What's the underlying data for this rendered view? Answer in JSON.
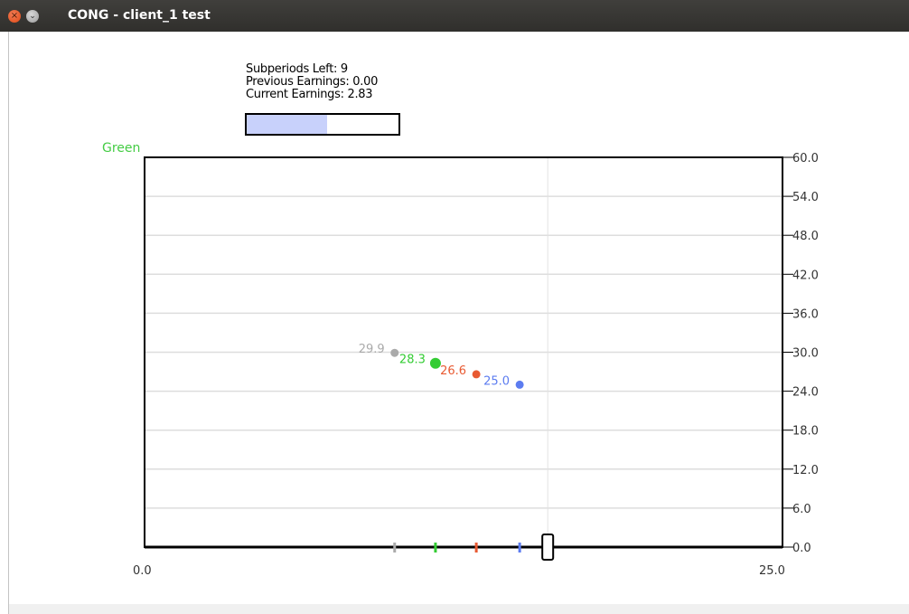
{
  "window": {
    "title": "CONG - client_1 test",
    "close_glyph": "×",
    "menu_glyph": "⌄"
  },
  "info": {
    "subperiods_left": "Subperiods Left: 9",
    "previous_earnings": "Previous Earnings: 0.00",
    "current_earnings": "Current Earnings: 2.83",
    "progress_fraction": 0.53,
    "progress_color": "#c8d1fb"
  },
  "chart_data": {
    "type": "scatter",
    "player_label": "Green",
    "player_label_color": "#44cc44",
    "xlim": [
      0.0,
      25.0
    ],
    "ylim": [
      0.0,
      60.0
    ],
    "y_ticks": [
      "0.0",
      "6.0",
      "12.0",
      "18.0",
      "24.0",
      "30.0",
      "36.0",
      "42.0",
      "48.0",
      "54.0",
      "60.0"
    ],
    "x_tick_labels": [
      "0.0",
      "25.0"
    ],
    "grid": true,
    "cursor_x": 15.8,
    "points": [
      {
        "label": "29.9",
        "x": 9.8,
        "y": 29.9,
        "color": "#aaaaaa",
        "size": "small"
      },
      {
        "label": "28.3",
        "x": 11.4,
        "y": 28.3,
        "color": "#33cc33",
        "size": "large"
      },
      {
        "label": "26.6",
        "x": 13.0,
        "y": 26.6,
        "color": "#e85a32",
        "size": "small"
      },
      {
        "label": "25.0",
        "x": 14.7,
        "y": 25.0,
        "color": "#5c7cf0",
        "size": "small"
      }
    ]
  }
}
